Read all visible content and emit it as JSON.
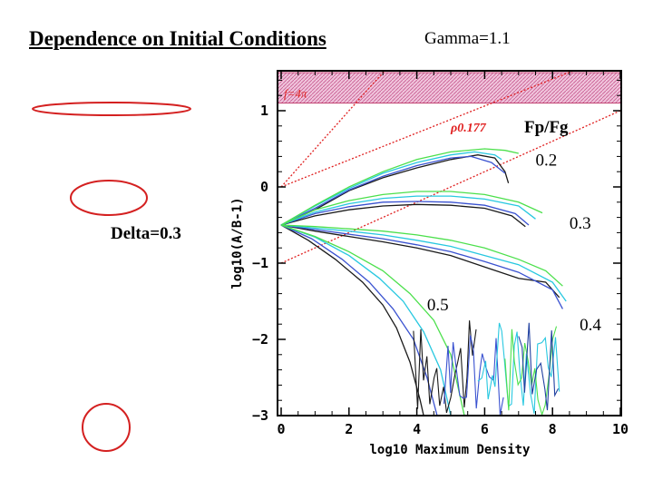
{
  "slide": {
    "title": "Dependence on Initial Conditions",
    "gamma_label": "Gamma=1.1",
    "delta_label": "Delta=0.3"
  },
  "shapes": [
    {
      "name": "flat-ellipse-shape",
      "axis_ratio": 0.08
    },
    {
      "name": "oblate-ellipse-shape",
      "axis_ratio": 0.45
    },
    {
      "name": "circle-shape",
      "axis_ratio": 1.0
    }
  ],
  "colors": {
    "shape_stroke": "#d42020",
    "ref_line": "#e02020",
    "band_fill": "#e8a8c8",
    "band_border": "#c04070"
  },
  "chart_data": {
    "type": "line",
    "title": "",
    "xlabel": "log10 Maximum Density",
    "ylabel": "log10(A/B-1)",
    "xlim": [
      0,
      10
    ],
    "ylim": [
      -3,
      1.5
    ],
    "xticks": [
      0,
      2,
      4,
      6,
      8,
      10
    ],
    "yticks": [
      -3,
      -2,
      -1,
      0,
      1
    ],
    "shaded_band": {
      "ymin": 1.1,
      "ymax": 1.5,
      "label": "f=4π"
    },
    "reference_lines": [
      {
        "name": "rho-0.177",
        "slope": 0.177,
        "intercept": 0,
        "label": "ρ0.177"
      },
      {
        "name": "steep-ref",
        "slope": 0.5,
        "intercept": 0
      },
      {
        "name": "shallow-ref",
        "slope": 0.2,
        "intercept": -1
      }
    ],
    "legend_title": "Fp/Fg",
    "annotations": [
      {
        "text": "0.2",
        "x": 7.5,
        "y": 0.28
      },
      {
        "text": "0.3",
        "x": 8.5,
        "y": -0.55
      },
      {
        "text": "0.5",
        "x": 4.3,
        "y": -1.62
      },
      {
        "text": "0.4",
        "x": 8.8,
        "y": -1.88
      }
    ],
    "series": [
      {
        "group": "0.2",
        "color": "#1a1a1a",
        "points": [
          [
            0,
            -0.5
          ],
          [
            1,
            -0.3
          ],
          [
            2,
            -0.05
          ],
          [
            3,
            0.12
          ],
          [
            4,
            0.25
          ],
          [
            5,
            0.36
          ],
          [
            5.8,
            0.42
          ],
          [
            6.3,
            0.38
          ],
          [
            6.6,
            0.2
          ],
          [
            6.7,
            0.05
          ]
        ]
      },
      {
        "group": "0.2",
        "color": "#3a52d0",
        "points": [
          [
            0,
            -0.5
          ],
          [
            1,
            -0.28
          ],
          [
            2,
            -0.04
          ],
          [
            3,
            0.14
          ],
          [
            4,
            0.28
          ],
          [
            5,
            0.38
          ],
          [
            5.6,
            0.4
          ],
          [
            6.2,
            0.32
          ],
          [
            6.6,
            0.18
          ]
        ]
      },
      {
        "group": "0.2",
        "color": "#28c8e0",
        "points": [
          [
            0,
            -0.5
          ],
          [
            1,
            -0.25
          ],
          [
            2,
            -0.02
          ],
          [
            3,
            0.18
          ],
          [
            4,
            0.32
          ],
          [
            5,
            0.42
          ],
          [
            5.7,
            0.46
          ],
          [
            6.3,
            0.42
          ],
          [
            6.5,
            0.36
          ]
        ]
      },
      {
        "group": "0.2",
        "color": "#4ce04c",
        "points": [
          [
            0,
            -0.5
          ],
          [
            1,
            -0.24
          ],
          [
            2,
            0.0
          ],
          [
            3,
            0.2
          ],
          [
            4,
            0.36
          ],
          [
            5,
            0.46
          ],
          [
            6,
            0.5
          ],
          [
            6.6,
            0.48
          ],
          [
            7.0,
            0.44
          ]
        ]
      },
      {
        "group": "0.3",
        "color": "#1a1a1a",
        "points": [
          [
            0,
            -0.5
          ],
          [
            1,
            -0.38
          ],
          [
            2,
            -0.3
          ],
          [
            3,
            -0.25
          ],
          [
            4,
            -0.23
          ],
          [
            5,
            -0.24
          ],
          [
            6,
            -0.28
          ],
          [
            6.8,
            -0.38
          ],
          [
            7.2,
            -0.52
          ]
        ]
      },
      {
        "group": "0.3",
        "color": "#3a52d0",
        "points": [
          [
            0,
            -0.5
          ],
          [
            1,
            -0.35
          ],
          [
            2,
            -0.26
          ],
          [
            3,
            -0.2
          ],
          [
            4,
            -0.19
          ],
          [
            5,
            -0.2
          ],
          [
            6,
            -0.24
          ],
          [
            6.9,
            -0.35
          ],
          [
            7.3,
            -0.5
          ]
        ]
      },
      {
        "group": "0.3",
        "color": "#28c8e0",
        "points": [
          [
            0,
            -0.5
          ],
          [
            1,
            -0.33
          ],
          [
            2,
            -0.22
          ],
          [
            3,
            -0.15
          ],
          [
            4,
            -0.12
          ],
          [
            5,
            -0.12
          ],
          [
            6,
            -0.16
          ],
          [
            7,
            -0.25
          ],
          [
            7.5,
            -0.42
          ]
        ]
      },
      {
        "group": "0.3",
        "color": "#4ce04c",
        "points": [
          [
            0,
            -0.5
          ],
          [
            1,
            -0.3
          ],
          [
            2,
            -0.18
          ],
          [
            3,
            -0.1
          ],
          [
            4,
            -0.06
          ],
          [
            5,
            -0.06
          ],
          [
            6,
            -0.1
          ],
          [
            7,
            -0.2
          ],
          [
            7.7,
            -0.34
          ]
        ]
      },
      {
        "group": "0.4",
        "color": "#1a1a1a",
        "points": [
          [
            0,
            -0.5
          ],
          [
            1,
            -0.58
          ],
          [
            2,
            -0.65
          ],
          [
            3,
            -0.72
          ],
          [
            4,
            -0.8
          ],
          [
            5,
            -0.9
          ],
          [
            6,
            -1.05
          ],
          [
            7,
            -1.2
          ],
          [
            7.8,
            -1.25
          ],
          [
            8.2,
            -1.45
          ]
        ]
      },
      {
        "group": "0.4",
        "color": "#3a52d0",
        "points": [
          [
            0,
            -0.5
          ],
          [
            1,
            -0.56
          ],
          [
            2,
            -0.62
          ],
          [
            3,
            -0.68
          ],
          [
            4,
            -0.76
          ],
          [
            5,
            -0.85
          ],
          [
            6,
            -0.98
          ],
          [
            7,
            -1.12
          ],
          [
            8,
            -1.35
          ],
          [
            8.3,
            -1.6
          ]
        ]
      },
      {
        "group": "0.4",
        "color": "#28c8e0",
        "points": [
          [
            0,
            -0.5
          ],
          [
            1,
            -0.54
          ],
          [
            2,
            -0.58
          ],
          [
            3,
            -0.63
          ],
          [
            4,
            -0.7
          ],
          [
            5,
            -0.78
          ],
          [
            6,
            -0.9
          ],
          [
            7,
            -1.02
          ],
          [
            8,
            -1.25
          ],
          [
            8.4,
            -1.5
          ]
        ]
      },
      {
        "group": "0.4",
        "color": "#4ce04c",
        "points": [
          [
            0,
            -0.5
          ],
          [
            1,
            -0.52
          ],
          [
            2,
            -0.55
          ],
          [
            3,
            -0.58
          ],
          [
            4,
            -0.63
          ],
          [
            5,
            -0.7
          ],
          [
            6,
            -0.8
          ],
          [
            7,
            -0.95
          ],
          [
            7.8,
            -1.1
          ],
          [
            8.3,
            -1.3
          ]
        ]
      },
      {
        "group": "0.5",
        "color": "#1a1a1a",
        "points": [
          [
            0,
            -0.5
          ],
          [
            0.8,
            -0.7
          ],
          [
            1.6,
            -0.95
          ],
          [
            2.4,
            -1.25
          ],
          [
            3.0,
            -1.55
          ],
          [
            3.4,
            -1.85
          ],
          [
            3.8,
            -2.3
          ],
          [
            4.1,
            -2.8
          ],
          [
            4.2,
            -3.0
          ]
        ]
      },
      {
        "group": "0.5",
        "color": "#3a52d0",
        "points": [
          [
            0,
            -0.5
          ],
          [
            0.9,
            -0.68
          ],
          [
            1.8,
            -0.95
          ],
          [
            2.6,
            -1.25
          ],
          [
            3.3,
            -1.6
          ],
          [
            3.9,
            -2.0
          ],
          [
            4.3,
            -2.5
          ],
          [
            4.6,
            -3.0
          ]
        ]
      },
      {
        "group": "0.5",
        "color": "#28c8e0",
        "points": [
          [
            0,
            -0.5
          ],
          [
            1,
            -0.66
          ],
          [
            2,
            -0.9
          ],
          [
            2.9,
            -1.2
          ],
          [
            3.6,
            -1.5
          ],
          [
            4.2,
            -1.9
          ],
          [
            4.7,
            -2.4
          ],
          [
            5.0,
            -3.0
          ]
        ]
      },
      {
        "group": "0.5",
        "color": "#4ce04c",
        "points": [
          [
            0,
            -0.5
          ],
          [
            1,
            -0.65
          ],
          [
            2,
            -0.85
          ],
          [
            3,
            -1.1
          ],
          [
            3.8,
            -1.4
          ],
          [
            4.5,
            -1.75
          ],
          [
            5.0,
            -2.2
          ],
          [
            5.4,
            -3.0
          ]
        ]
      }
    ]
  }
}
